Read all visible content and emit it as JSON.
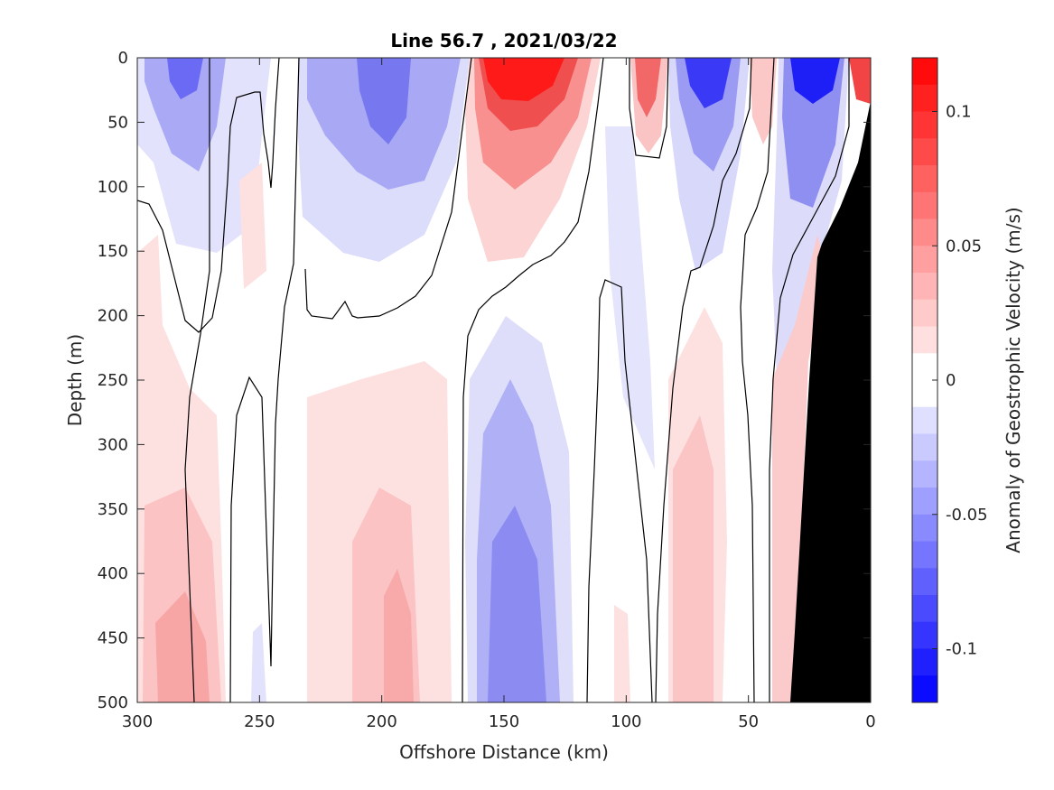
{
  "chart_data": {
    "type": "heatmap",
    "title": "Line 56.7 , 2021/03/22",
    "xlabel": "Offshore Distance (km)",
    "ylabel": "Depth (m)",
    "colorbar_label": "Anomaly of Geostrophic Velocity (m/s)",
    "xlim": [
      300,
      0
    ],
    "ylim": [
      0,
      500
    ],
    "x_direction": "reversed",
    "y_direction": "reversed (depth increases downward)",
    "xticks": [
      300,
      250,
      200,
      150,
      100,
      50,
      0
    ],
    "yticks": [
      0,
      50,
      100,
      150,
      200,
      250,
      300,
      350,
      400,
      450,
      500
    ],
    "colorbar_range": [
      -0.12,
      0.12
    ],
    "colorbar_ticks": [
      0.1,
      0.05,
      0,
      -0.05,
      -0.1
    ],
    "colorbar_tick_labels": [
      "0.1",
      "0.05",
      "0",
      "-0.05",
      "-0.1"
    ],
    "colormap": "blue-white-red diverging",
    "colors": {
      "negative": "#0000ff",
      "zero": "#ffffff",
      "positive": "#ff0000",
      "bathymetry": "#000000",
      "zero_contour": "#000000"
    },
    "features": [
      {
        "sign": "positive",
        "x": 148,
        "depth": 20,
        "value": 0.11
      },
      {
        "sign": "negative",
        "x": 70,
        "depth": 20,
        "value": -0.1
      },
      {
        "sign": "negative",
        "x": 25,
        "depth": 15,
        "value": -0.11
      },
      {
        "sign": "positive",
        "x": 90,
        "depth": 30,
        "value": 0.07
      },
      {
        "sign": "positive",
        "x": 5,
        "depth": 10,
        "value": 0.09
      },
      {
        "sign": "negative",
        "x": 280,
        "depth": 20,
        "value": -0.07
      },
      {
        "sign": "negative",
        "x": 195,
        "depth": 30,
        "value": -0.06
      },
      {
        "sign": "negative",
        "x": 150,
        "depth": 480,
        "value": -0.05
      },
      {
        "sign": "positive",
        "x": 280,
        "depth": 460,
        "value": 0.03
      },
      {
        "sign": "positive",
        "x": 195,
        "depth": 460,
        "value": 0.03
      },
      {
        "sign": "positive",
        "x": 70,
        "depth": 480,
        "value": 0.03
      }
    ],
    "grid": false,
    "legend": "colorbar-right"
  }
}
